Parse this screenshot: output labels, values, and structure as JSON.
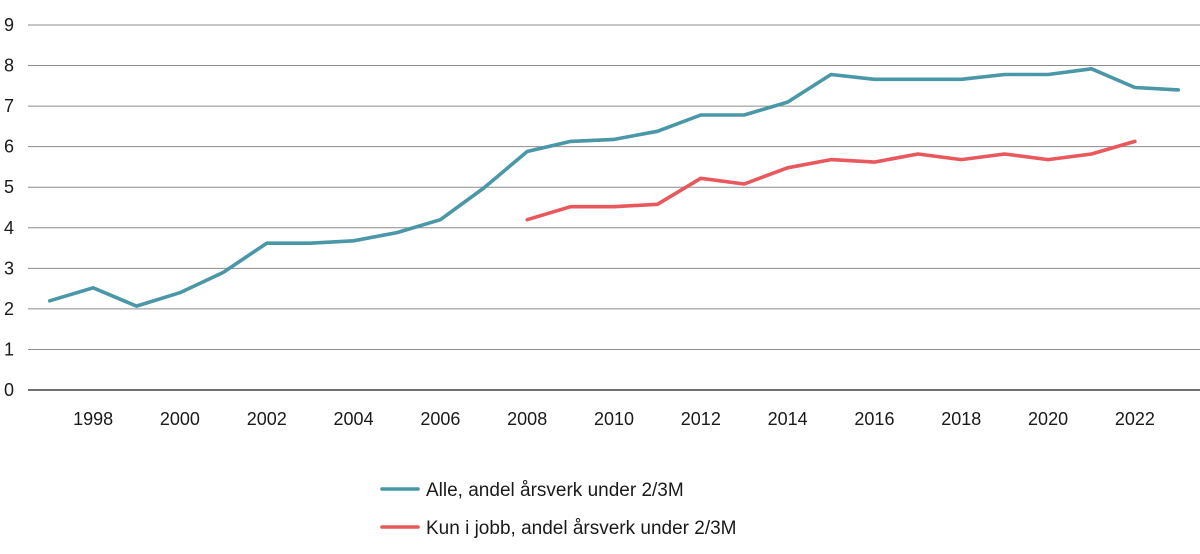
{
  "chart_data": {
    "type": "line",
    "title": "",
    "xlabel": "",
    "ylabel": "",
    "ylim": [
      0,
      9
    ],
    "xlim": [
      1996.5,
      2023.5
    ],
    "yticks": [
      0,
      1,
      2,
      3,
      4,
      5,
      6,
      7,
      8,
      9
    ],
    "xticks": [
      1998,
      2000,
      2002,
      2004,
      2006,
      2008,
      2010,
      2012,
      2014,
      2016,
      2018,
      2020,
      2022
    ],
    "grid": "horizontal",
    "legend_position": "bottom-center",
    "series": [
      {
        "name": "Alle, andel årsverk under 2/3M",
        "color": "#4a97a8",
        "x": [
          1997,
          1998,
          1999,
          2000,
          2001,
          2002,
          2003,
          2004,
          2005,
          2006,
          2007,
          2008,
          2009,
          2010,
          2011,
          2012,
          2013,
          2014,
          2015,
          2016,
          2017,
          2018,
          2019,
          2020,
          2021,
          2022,
          2023
        ],
        "values": [
          2.2,
          2.52,
          2.07,
          2.4,
          2.9,
          3.62,
          3.62,
          3.68,
          3.88,
          4.2,
          4.98,
          5.88,
          6.13,
          6.18,
          6.38,
          6.78,
          6.78,
          7.1,
          7.78,
          7.66,
          7.66,
          7.66,
          7.78,
          7.78,
          7.92,
          7.46,
          7.4
        ]
      },
      {
        "name": "Kun i jobb, andel årsverk under 2/3M",
        "color": "#e8585c",
        "x": [
          2008,
          2009,
          2010,
          2011,
          2012,
          2013,
          2014,
          2015,
          2016,
          2017,
          2018,
          2019,
          2020,
          2021,
          2022
        ],
        "values": [
          4.2,
          4.52,
          4.52,
          4.58,
          5.22,
          5.08,
          5.48,
          5.68,
          5.62,
          5.82,
          5.68,
          5.82,
          5.68,
          5.82,
          6.13
        ]
      }
    ]
  }
}
